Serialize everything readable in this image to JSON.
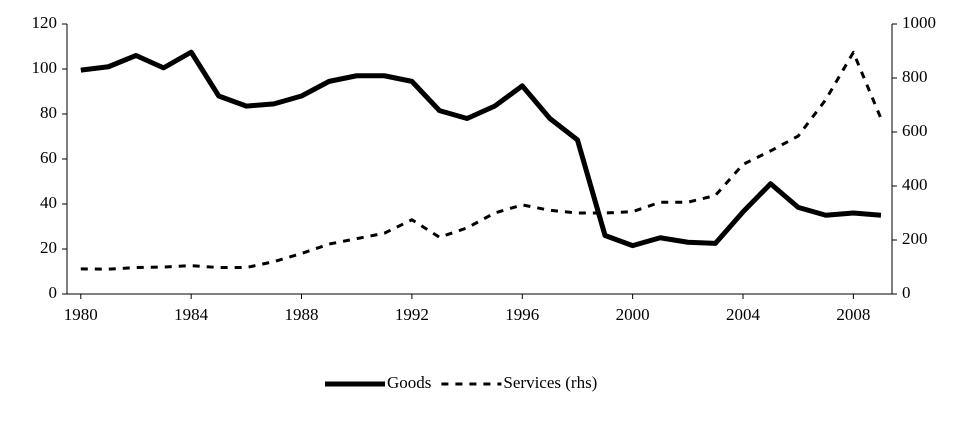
{
  "chart_data": {
    "type": "line",
    "x": [
      1980,
      1981,
      1982,
      1983,
      1984,
      1985,
      1986,
      1987,
      1988,
      1989,
      1990,
      1991,
      1992,
      1993,
      1994,
      1995,
      1996,
      1997,
      1998,
      1999,
      2000,
      2001,
      2002,
      2003,
      2004,
      2005,
      2006,
      2007,
      2008,
      2009
    ],
    "series": [
      {
        "name": "Goods",
        "color": "#000000",
        "style": "solid",
        "axis": "y",
        "values": [
          99.5,
          101,
          106,
          100.5,
          107.5,
          88,
          83.5,
          84.5,
          88,
          94.5,
          97,
          97,
          94.5,
          81.5,
          78,
          83.5,
          92.5,
          78,
          68.5,
          26,
          21.5,
          25,
          23,
          22.5,
          36.5,
          49,
          38.5,
          35,
          36,
          35
        ]
      },
      {
        "name": "Services (rhs)",
        "color": "#000000",
        "style": "dashed",
        "axis": "y2",
        "values": [
          93,
          92,
          98,
          100,
          105,
          98,
          98,
          120,
          150,
          185,
          205,
          225,
          275,
          210,
          245,
          300,
          330,
          310,
          300,
          300,
          305,
          340,
          340,
          365,
          480,
          530,
          585,
          720,
          895,
          650
        ]
      }
    ],
    "xlim": [
      1979.5,
      2009.4
    ],
    "xticks": [
      1980,
      1984,
      1988,
      1992,
      1996,
      2000,
      2004,
      2008
    ],
    "ylim": [
      0,
      120
    ],
    "yticks": [
      0,
      20,
      40,
      60,
      80,
      100,
      120
    ],
    "y2lim": [
      0,
      1000
    ],
    "y2ticks": [
      0,
      200,
      400,
      600,
      800,
      1000
    ],
    "legend": "bottom"
  }
}
